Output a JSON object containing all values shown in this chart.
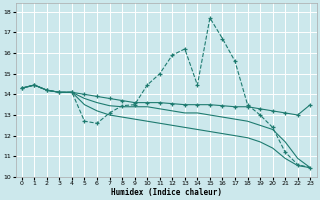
{
  "xlabel": "Humidex (Indice chaleur)",
  "bg_color": "#cce8ec",
  "grid_color": "#ffffff",
  "line_color": "#1e7b70",
  "xlim": [
    -0.5,
    23.5
  ],
  "ylim": [
    10,
    18.4
  ],
  "xticks": [
    0,
    1,
    2,
    3,
    4,
    5,
    6,
    7,
    8,
    9,
    10,
    11,
    12,
    13,
    14,
    15,
    16,
    17,
    18,
    19,
    20,
    21,
    22,
    23
  ],
  "yticks": [
    10,
    11,
    12,
    13,
    14,
    15,
    16,
    17,
    18
  ],
  "line_peaked_x": [
    0,
    1,
    2,
    3,
    4,
    5,
    6,
    7,
    8,
    9,
    10,
    11,
    12,
    13,
    14,
    15,
    16,
    17,
    18,
    19,
    20,
    21,
    22,
    23
  ],
  "line_peaked_y": [
    14.3,
    14.45,
    14.2,
    14.1,
    14.1,
    12.7,
    12.6,
    13.1,
    13.45,
    13.5,
    14.45,
    15.0,
    15.9,
    16.2,
    14.45,
    17.7,
    16.7,
    15.6,
    13.5,
    13.0,
    12.4,
    11.2,
    10.6,
    10.45
  ],
  "line_flat1_x": [
    0,
    1,
    2,
    3,
    4,
    5,
    6,
    7,
    8,
    9,
    10,
    11,
    12,
    13,
    14,
    15,
    16,
    17,
    18,
    19,
    20,
    21,
    22,
    23
  ],
  "line_flat1_y": [
    14.3,
    14.45,
    14.2,
    14.1,
    14.1,
    14.0,
    13.9,
    13.8,
    13.7,
    13.6,
    13.6,
    13.6,
    13.55,
    13.5,
    13.5,
    13.5,
    13.45,
    13.4,
    13.4,
    13.3,
    13.2,
    13.1,
    13.0,
    13.5
  ],
  "line_flat2_x": [
    0,
    1,
    2,
    3,
    4,
    5,
    6,
    7,
    8,
    9,
    10,
    11,
    12,
    13,
    14,
    15,
    16,
    17,
    18,
    19,
    20,
    21,
    22,
    23
  ],
  "line_flat2_y": [
    14.3,
    14.45,
    14.2,
    14.1,
    14.1,
    13.8,
    13.6,
    13.45,
    13.4,
    13.4,
    13.4,
    13.3,
    13.2,
    13.1,
    13.1,
    13.0,
    12.9,
    12.8,
    12.7,
    12.5,
    12.3,
    11.7,
    10.9,
    10.45
  ],
  "line_min_x": [
    0,
    1,
    2,
    3,
    4,
    5,
    6,
    7,
    8,
    9,
    10,
    11,
    12,
    13,
    14,
    15,
    16,
    17,
    18,
    19,
    20,
    21,
    22,
    23
  ],
  "line_min_y": [
    14.3,
    14.45,
    14.2,
    14.1,
    14.1,
    13.5,
    13.2,
    13.0,
    12.9,
    12.8,
    12.7,
    12.6,
    12.5,
    12.4,
    12.3,
    12.2,
    12.1,
    12.0,
    11.9,
    11.7,
    11.4,
    10.9,
    10.55,
    10.45
  ]
}
